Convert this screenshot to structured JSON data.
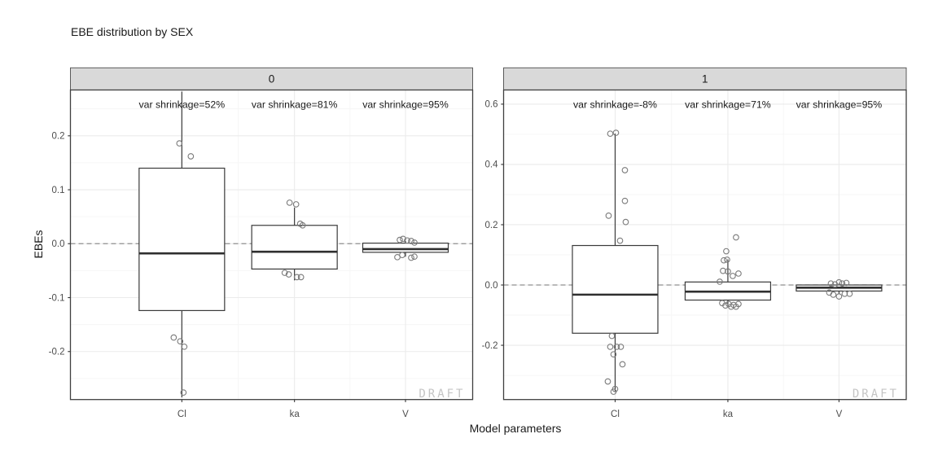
{
  "chart_data": {
    "type": "boxplot",
    "title": "EBE distribution by SEX",
    "xlabel": "Model parameters",
    "ylabel": "EBEs",
    "watermark": "DRAFT",
    "categories": [
      "Cl",
      "ka",
      "V"
    ],
    "reference_line_y": 0.0,
    "legend": "none",
    "grid": "on",
    "facets": [
      {
        "label": "0",
        "ylim": [
          -0.289,
          0.285
        ],
        "yticks": [
          {
            "value": 0.2,
            "label": "0.2"
          },
          {
            "value": 0.1,
            "label": "0.1"
          },
          {
            "value": 0.0,
            "label": "0.0"
          },
          {
            "value": -0.1,
            "label": "-0.1"
          },
          {
            "value": -0.2,
            "label": "-0.2"
          }
        ],
        "yminor": [
          0.25,
          0.15,
          0.05,
          -0.05,
          -0.15,
          -0.25
        ],
        "annotations": [
          "var shrinkage=52%",
          "var shrinkage=81%",
          "var shrinkage=95%"
        ],
        "boxes": [
          {
            "category": "Cl",
            "whisker_low": -0.285,
            "q1": -0.124,
            "median": -0.018,
            "q3": 0.14,
            "whisker_high": 0.282
          },
          {
            "category": "ka",
            "whisker_low": -0.068,
            "q1": -0.047,
            "median": -0.015,
            "q3": 0.034,
            "whisker_high": 0.067
          },
          {
            "category": "V",
            "whisker_low": -0.024,
            "q1": -0.016,
            "median": -0.01,
            "q3": 0.001,
            "whisker_high": 0.005
          }
        ],
        "points_cat_dx_y": [
          [
            0,
            -3,
            0.186
          ],
          [
            0,
            11,
            0.162
          ],
          [
            0,
            -10,
            -0.174
          ],
          [
            0,
            -2,
            -0.181
          ],
          [
            0,
            3,
            -0.191
          ],
          [
            0,
            2,
            -0.276
          ],
          [
            1,
            -6,
            0.076
          ],
          [
            1,
            2,
            0.073
          ],
          [
            1,
            7,
            0.037
          ],
          [
            1,
            10,
            0.034
          ],
          [
            1,
            -12,
            -0.054
          ],
          [
            1,
            -7,
            -0.057
          ],
          [
            1,
            3,
            -0.062
          ],
          [
            1,
            8,
            -0.062
          ],
          [
            2,
            -7,
            0.007
          ],
          [
            2,
            -3,
            0.009
          ],
          [
            2,
            2,
            0.006
          ],
          [
            2,
            7,
            0.005
          ],
          [
            2,
            11,
            0.002
          ],
          [
            2,
            -10,
            -0.025
          ],
          [
            2,
            -4,
            -0.021
          ],
          [
            2,
            7,
            -0.026
          ],
          [
            2,
            11,
            -0.024
          ]
        ]
      },
      {
        "label": "1",
        "ylim": [
          -0.38,
          0.647
        ],
        "yticks": [
          {
            "value": 0.6,
            "label": "0.6"
          },
          {
            "value": 0.4,
            "label": "0.4"
          },
          {
            "value": 0.2,
            "label": "0.2"
          },
          {
            "value": 0.0,
            "label": "0.0"
          },
          {
            "value": -0.2,
            "label": "-0.2"
          }
        ],
        "yminor": [
          0.5,
          0.3,
          0.1,
          -0.1,
          -0.3
        ],
        "annotations": [
          "var shrinkage=-8%",
          "var shrinkage=71%",
          "var shrinkage=95%"
        ],
        "boxes": [
          {
            "category": "Cl",
            "whisker_low": -0.352,
            "q1": -0.16,
            "median": -0.032,
            "q3": 0.131,
            "whisker_high": 0.502
          },
          {
            "category": "ka",
            "whisker_low": -0.07,
            "q1": -0.05,
            "median": -0.022,
            "q3": 0.01,
            "whisker_high": 0.085
          },
          {
            "category": "V",
            "whisker_low": -0.03,
            "q1": -0.02,
            "median": -0.009,
            "q3": 0.0,
            "whisker_high": 0.005
          }
        ],
        "points_cat_dx_y": [
          [
            0,
            -6,
            0.502
          ],
          [
            0,
            1,
            0.505
          ],
          [
            0,
            12,
            0.381
          ],
          [
            0,
            12,
            0.279
          ],
          [
            0,
            -8,
            0.23
          ],
          [
            0,
            13,
            0.209
          ],
          [
            0,
            6,
            0.147
          ],
          [
            0,
            -4,
            -0.169
          ],
          [
            0,
            -6,
            -0.205
          ],
          [
            0,
            2,
            -0.205
          ],
          [
            0,
            7,
            -0.205
          ],
          [
            0,
            -2,
            -0.23
          ],
          [
            0,
            9,
            -0.263
          ],
          [
            0,
            -9,
            -0.32
          ],
          [
            0,
            0,
            -0.345
          ],
          [
            0,
            -2,
            -0.354
          ],
          [
            1,
            10,
            0.158
          ],
          [
            1,
            -2,
            0.112
          ],
          [
            1,
            -5,
            0.082
          ],
          [
            1,
            -1,
            0.084
          ],
          [
            1,
            -6,
            0.047
          ],
          [
            1,
            0,
            0.045
          ],
          [
            1,
            6,
            0.03
          ],
          [
            1,
            13,
            0.038
          ],
          [
            1,
            -10,
            0.011
          ],
          [
            1,
            -7,
            -0.06
          ],
          [
            1,
            -3,
            -0.068
          ],
          [
            1,
            1,
            -0.063
          ],
          [
            1,
            4,
            -0.072
          ],
          [
            1,
            7,
            -0.066
          ],
          [
            1,
            10,
            -0.072
          ],
          [
            1,
            13,
            -0.063
          ],
          [
            2,
            -10,
            0.005
          ],
          [
            2,
            -5,
            0.002
          ],
          [
            2,
            0,
            0.009
          ],
          [
            2,
            4,
            0.005
          ],
          [
            2,
            9,
            0.007
          ],
          [
            2,
            -12,
            -0.025
          ],
          [
            2,
            -7,
            -0.032
          ],
          [
            2,
            0,
            -0.038
          ],
          [
            2,
            7,
            -0.029
          ],
          [
            2,
            13,
            -0.029
          ]
        ]
      }
    ]
  },
  "colors": {
    "background": "#ffffff",
    "strip_fill": "#d9d9d9",
    "strip_border": "#5a5a5a",
    "panel_border": "#3f3f3f",
    "grid_major": "#ebebeb",
    "grid_minor": "#f6f6f6",
    "box_stroke": "#3a3a3a",
    "median_stroke": "#2f2f2f",
    "point_stroke": "#7a7a7a",
    "reference_dash": "#909090",
    "tick_mark": "#333333",
    "tick_label": "#4d4d4d",
    "annotation_text": "#1a1a1a",
    "watermark_text": "#c5c5c5"
  }
}
